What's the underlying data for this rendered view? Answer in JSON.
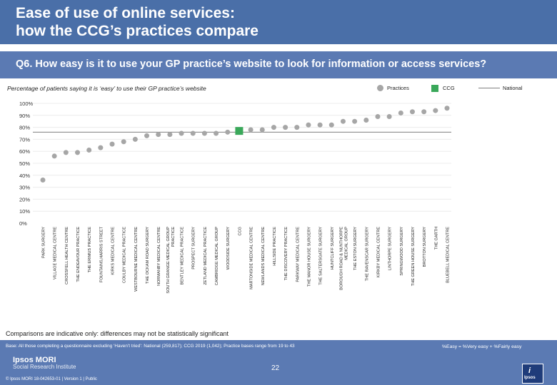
{
  "header": {
    "title_line1": "Ease of use of online services:",
    "title_line2": "how the CCG’s practices compare",
    "question": "Q6. How easy is it to use your GP practice’s website to look for information or access services?",
    "subtitle": "Percentage of patients saying it is ‘easy’ to use their GP practice’s website"
  },
  "legend": {
    "practices": "Practices",
    "ccg": "CCG",
    "national": "National"
  },
  "colors": {
    "practice_dot": "#a6a6a6",
    "ccg": "#3aa85a",
    "national_line": "#7f7f7f",
    "brand_blue": "#4a6fa8",
    "footer_blue": "#5b7ab3"
  },
  "chart_data": {
    "type": "scatter",
    "title": "Percentage of patients saying it is ‘easy’ to use their GP practice’s website",
    "ylim": [
      0,
      100
    ],
    "yticks": [
      "100%",
      "90%",
      "80%",
      "70%",
      "60%",
      "50%",
      "40%",
      "30%",
      "20%",
      "10%",
      "0%"
    ],
    "national": 76,
    "categories": [
      "PARK SURGERY",
      "VILLAGE MEDICAL CENTRE",
      "CROSSFELL HEALTH CENTRE",
      "THE ENDEAVOUR PRACTICE",
      "THE ERIMUS PRACTICE",
      "FOUNTAINS,HARRIS STREET",
      "KIRKS MEDICAL CENTRE",
      "COULBY MEDICAL PRACTICE",
      "WESTBOURNE MEDICAL CENTRE",
      "THE OCKAM ROAD SURGERY",
      "NORMANBY MEDICAL CENTRE",
      "SOUTH GRANGE MEDICAL GROUP PRACTICE",
      "BENTLEY MEDICAL PRACTICE",
      "PROSPECT SURGERY",
      "ZETLAND MEDICAL PRACTICE",
      "CAMBRIDGE MEDICAL GROUP",
      "WOODSIDE SURGERY",
      "CCG",
      "MARTONSIDE MEDICAL CENTRE",
      "NEWLANDS MEDICAL CENTRE",
      "HILLSIDE PRACTICE",
      "THE DISCOVERY PRACTICE",
      "PARKWAY MEDICAL CENTRE",
      "THE MANOR HOUSE SURGERY",
      "THE SALTERSGATE SURGERY",
      "HUNTCLIFF SURGERY",
      "BOROUGH ROAD & NUNTHORPE MEDICAL GROUP",
      "THE ESTON SURGERY",
      "THE RAVENSCAR SURGERY",
      "KIRKBY MEDICAL CENTRE",
      "LINTHORPE SURGERY",
      "SPRINGWOOD SURGERY",
      "THE GREEN HOUSE SURGERY",
      "BROTTON SURGERY",
      "THE GARTH",
      "BLUEBELL MEDICAL CENTRE"
    ],
    "values": [
      36,
      56,
      59,
      59,
      61,
      63,
      66,
      68,
      70,
      73,
      74,
      74,
      75,
      75,
      75,
      75,
      76,
      77,
      78,
      78,
      80,
      80,
      80,
      82,
      82,
      82,
      85,
      85,
      86,
      89,
      89,
      92,
      93,
      93,
      94,
      96
    ],
    "highlight": "CCG",
    "xlabel": "",
    "ylabel": ""
  },
  "footer": {
    "note": "Comparisons are indicative only: differences may not be statistically significant",
    "base": "Base: All those completing a questionnaire excluding ‘Haven’t tried’: National (259,817); CCG 2019 (1,042); Practice bases range from 19 to 43",
    "key": "%Easy = %Very easy + %Fairly easy",
    "brand_line1": "Ipsos MORI",
    "brand_line2": "Social Research Institute",
    "page_number": "22",
    "copyright": "© Ipsos MORI      18-042653-01 | Version 1 | Public",
    "logo_text": "Ipsos"
  }
}
